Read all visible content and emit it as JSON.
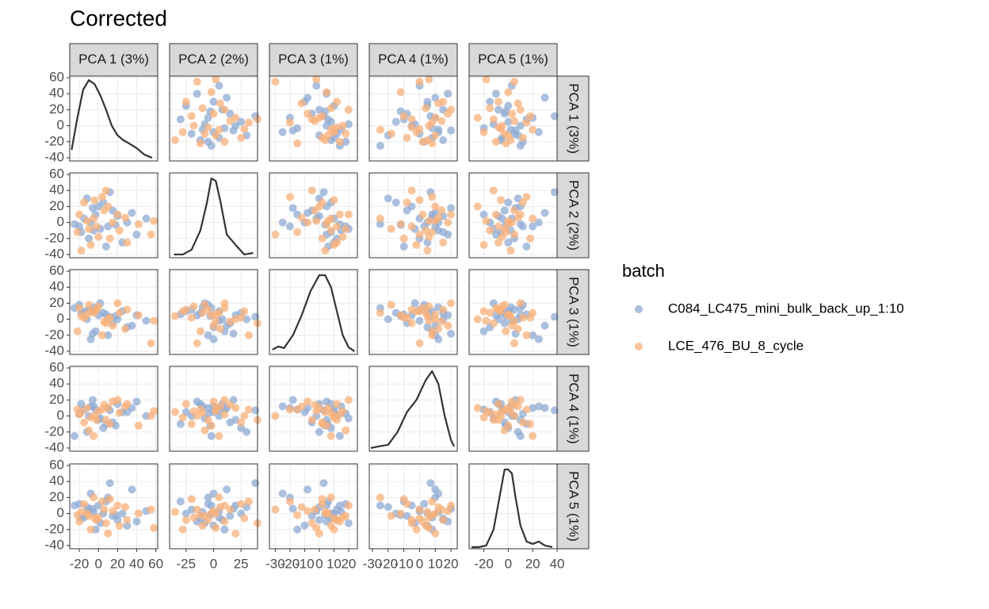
{
  "chart_data": {
    "type": "scatter-matrix",
    "title": "Corrected",
    "labels": [
      "PCA 1 (3%)",
      "PCA 2 (2%)",
      "PCA 3 (1%)",
      "PCA 4 (1%)",
      "PCA 5 (1%)"
    ],
    "ylim": [
      -44,
      62
    ],
    "yticks": [
      -40,
      -20,
      0,
      20,
      40,
      60
    ],
    "columns": [
      {
        "xlim": [
          -30,
          62
        ],
        "xticks": [
          -20,
          0,
          20,
          40,
          60
        ]
      },
      {
        "xlim": [
          -40,
          40
        ],
        "xticks": [
          -25,
          0,
          25
        ]
      },
      {
        "xlim": [
          -34,
          26
        ],
        "xticks": [
          -30,
          -20,
          -10,
          0,
          10,
          20
        ]
      },
      {
        "xlim": [
          -32,
          24
        ],
        "xticks": [
          -30,
          -20,
          -10,
          0,
          10,
          20
        ]
      },
      {
        "xlim": [
          -32,
          40
        ],
        "xticks": [
          -20,
          0,
          20,
          40
        ]
      }
    ],
    "legend_title": "batch",
    "series": [
      {
        "name": "C084_LC475_mini_bulk_back_up_1:10",
        "color": "#8fabd3",
        "values": [
          [
            -15,
            5,
            10,
            8,
            -5
          ],
          [
            -5,
            -10,
            15,
            12,
            2
          ],
          [
            0,
            20,
            5,
            -5,
            10
          ],
          [
            10,
            -5,
            -20,
            10,
            20
          ],
          [
            20,
            8,
            0,
            15,
            -8
          ],
          [
            -10,
            -20,
            12,
            0,
            5
          ],
          [
            30,
            0,
            -10,
            5,
            -15
          ],
          [
            5,
            25,
            8,
            -15,
            0
          ],
          [
            -20,
            -5,
            18,
            3,
            12
          ],
          [
            15,
            15,
            -5,
            -8,
            -3
          ],
          [
            -8,
            0,
            -25,
            12,
            25
          ],
          [
            40,
            -15,
            5,
            18,
            -10
          ],
          [
            -12,
            30,
            0,
            -20,
            8
          ],
          [
            25,
            -25,
            10,
            5,
            0
          ],
          [
            -3,
            10,
            -15,
            8,
            -20
          ],
          [
            8,
            -30,
            6,
            -10,
            15
          ],
          [
            50,
            5,
            -2,
            0,
            3
          ],
          [
            -18,
            -12,
            8,
            15,
            -6
          ],
          [
            12,
            38,
            3,
            7,
            38
          ],
          [
            -25,
            -2,
            14,
            -25,
            10
          ],
          [
            35,
            12,
            -8,
            10,
            30
          ],
          [
            2,
            -8,
            20,
            -3,
            -12
          ],
          [
            -6,
            18,
            -18,
            20,
            6
          ],
          [
            18,
            -3,
            4,
            -12,
            -2
          ]
        ]
      },
      {
        "name": "LCE_476_BU_8_cycle",
        "color": "#f8b07a",
        "values": [
          [
            -12,
            2,
            6,
            10,
            0
          ],
          [
            -2,
            -5,
            12,
            -5,
            -8
          ],
          [
            6,
            15,
            -3,
            14,
            5
          ],
          [
            22,
            -10,
            8,
            4,
            -15
          ],
          [
            -15,
            25,
            2,
            -8,
            12
          ],
          [
            0,
            -18,
            16,
            6,
            -5
          ],
          [
            28,
            6,
            -12,
            12,
            8
          ],
          [
            -8,
            -28,
            10,
            -2,
            -20
          ],
          [
            15,
            0,
            -8,
            18,
            3
          ],
          [
            -20,
            10,
            14,
            2,
            -10
          ],
          [
            42,
            -2,
            5,
            -12,
            0
          ],
          [
            4,
            32,
            -20,
            8,
            15
          ],
          [
            -10,
            -8,
            18,
            -18,
            -3
          ],
          [
            10,
            20,
            0,
            10,
            -25
          ],
          [
            55,
            -15,
            -30,
            0,
            5
          ],
          [
            -5,
            5,
            8,
            -25,
            20
          ],
          [
            30,
            -25,
            12,
            15,
            -8
          ],
          [
            -18,
            -35,
            4,
            5,
            2
          ],
          [
            8,
            40,
            -5,
            -5,
            -12
          ],
          [
            20,
            10,
            20,
            20,
            10
          ],
          [
            -22,
            -12,
            -15,
            8,
            -2
          ],
          [
            12,
            -20,
            2,
            -10,
            18
          ],
          [
            -4,
            28,
            10,
            0,
            -6
          ],
          [
            58,
            2,
            -2,
            6,
            -18
          ]
        ]
      }
    ],
    "densities": [
      {
        "x": [
          -28,
          -22,
          -16,
          -10,
          -4,
          2,
          8,
          14,
          20,
          26,
          32,
          40,
          48,
          56
        ],
        "y": [
          -30,
          10,
          45,
          57,
          52,
          38,
          20,
          0,
          -12,
          -18,
          -22,
          -28,
          -36,
          -40
        ]
      },
      {
        "x": [
          -36,
          -28,
          -20,
          -12,
          -6,
          -2,
          2,
          6,
          12,
          20,
          28,
          36
        ],
        "y": [
          -40,
          -40,
          -34,
          -10,
          25,
          55,
          52,
          28,
          -15,
          -28,
          -40,
          -38
        ]
      },
      {
        "x": [
          -32,
          -28,
          -24,
          -18,
          -12,
          -6,
          0,
          4,
          8,
          12,
          16,
          20,
          24
        ],
        "y": [
          -38,
          -34,
          -36,
          -20,
          5,
          35,
          55,
          55,
          40,
          10,
          -20,
          -35,
          -40
        ]
      },
      {
        "x": [
          -31,
          -26,
          -20,
          -14,
          -8,
          -2,
          4,
          8,
          12,
          16,
          20,
          22
        ],
        "y": [
          -40,
          -38,
          -36,
          -20,
          5,
          20,
          45,
          56,
          40,
          0,
          -30,
          -38
        ]
      },
      {
        "x": [
          -30,
          -24,
          -18,
          -12,
          -6,
          -3,
          0,
          3,
          6,
          10,
          15,
          20,
          25,
          30,
          36
        ],
        "y": [
          -42,
          -42,
          -40,
          -20,
          30,
          55,
          55,
          50,
          20,
          -15,
          -35,
          -38,
          -35,
          -40,
          -42
        ]
      }
    ]
  }
}
